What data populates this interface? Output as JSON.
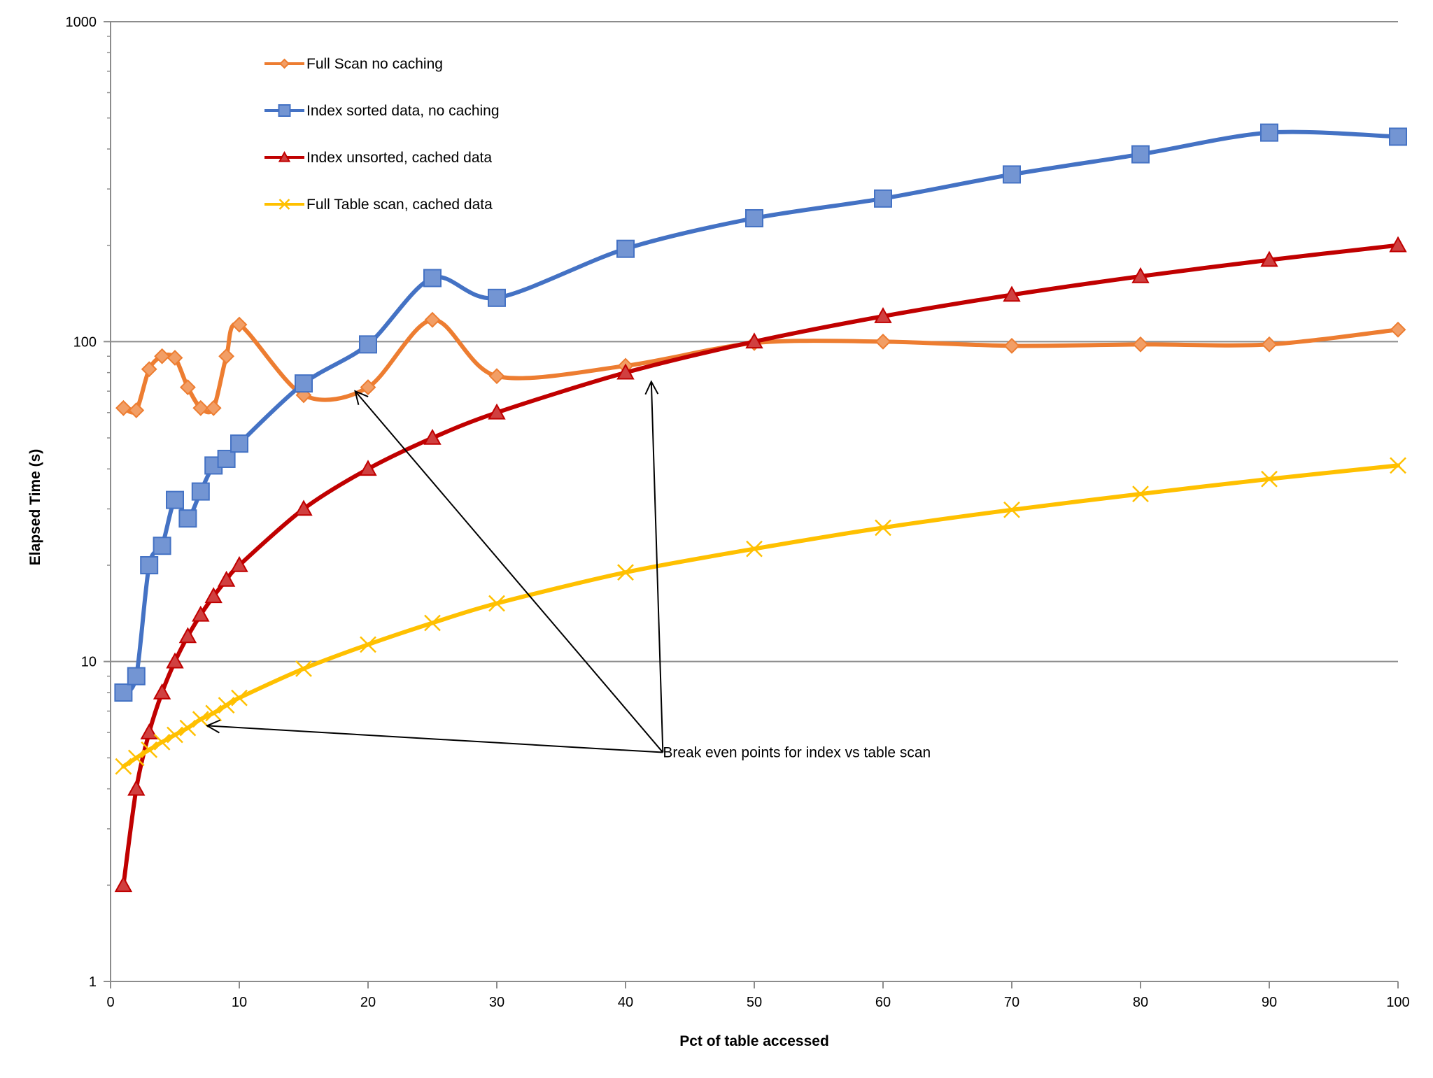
{
  "chart_data": {
    "type": "line",
    "title": "",
    "xlabel": "Pct of table accessed",
    "ylabel": "Elapsed Time (s)",
    "xlim": [
      0,
      100
    ],
    "ylim": [
      1,
      1000
    ],
    "yscale": "log",
    "x_ticks": [
      0,
      10,
      20,
      30,
      40,
      50,
      60,
      70,
      80,
      90,
      100
    ],
    "y_ticks": [
      1,
      10,
      100,
      1000
    ],
    "x_tick_labels": [
      "0",
      "10",
      "20",
      "30",
      "40",
      "50",
      "60",
      "70",
      "80",
      "90",
      "100"
    ],
    "y_tick_labels": [
      "1",
      "10",
      "100",
      "1000"
    ],
    "grid": "horizontal major gridlines",
    "legend_position": "upper-left, inside plot",
    "series": [
      {
        "name": "Full Scan no caching",
        "color": "#ED7D31",
        "marker": "diamond",
        "x": [
          1,
          2,
          3,
          4,
          5,
          6,
          7,
          8,
          9,
          10,
          15,
          20,
          25,
          30,
          40,
          50,
          60,
          70,
          80,
          90,
          100
        ],
        "values": [
          62,
          61,
          82,
          90,
          89,
          72,
          62,
          62,
          90,
          113,
          68,
          72,
          117,
          78,
          84,
          99,
          100,
          97,
          98,
          98,
          109
        ]
      },
      {
        "name": "Index sorted data, no caching",
        "color": "#4472C4",
        "marker": "square",
        "x": [
          1,
          2,
          3,
          4,
          5,
          6,
          7,
          8,
          9,
          10,
          15,
          20,
          25,
          30,
          40,
          50,
          60,
          70,
          80,
          90,
          100
        ],
        "values": [
          8,
          9,
          20,
          23,
          32,
          28,
          34,
          41,
          43,
          48,
          74,
          98,
          158,
          137,
          195,
          243,
          280,
          333,
          385,
          450,
          437
        ]
      },
      {
        "name": "Index unsorted, cached data",
        "color": "#C00000",
        "marker": "triangle",
        "x": [
          1,
          2,
          3,
          4,
          5,
          6,
          7,
          8,
          9,
          10,
          15,
          20,
          25,
          30,
          40,
          50,
          60,
          70,
          80,
          90,
          100
        ],
        "values": [
          2,
          4,
          6,
          8,
          10,
          12,
          14,
          16,
          18,
          20,
          30,
          40,
          50,
          60,
          80,
          100,
          120,
          140,
          160,
          180,
          200
        ]
      },
      {
        "name": "Full Table scan, cached data",
        "color": "#FFC000",
        "marker": "x",
        "x": [
          1,
          2,
          3,
          4,
          5,
          6,
          7,
          8,
          9,
          10,
          15,
          20,
          25,
          30,
          40,
          50,
          60,
          70,
          80,
          90,
          100
        ],
        "values": [
          4.7,
          5.0,
          5.3,
          5.6,
          5.9,
          6.2,
          6.6,
          6.9,
          7.3,
          7.7,
          9.5,
          11.3,
          13.2,
          15.2,
          19.0,
          22.5,
          26.2,
          29.8,
          33.4,
          37.2,
          41.0
        ]
      }
    ],
    "annotations": [
      {
        "text": "Break even points for index vs table scan",
        "text_anchor": {
          "x": 42.9,
          "y": 5.2
        },
        "arrows_to": [
          {
            "x": 7.5,
            "y": 6.3
          },
          {
            "x": 19.0,
            "y": 70
          },
          {
            "x": 42.0,
            "y": 75
          }
        ]
      }
    ]
  }
}
